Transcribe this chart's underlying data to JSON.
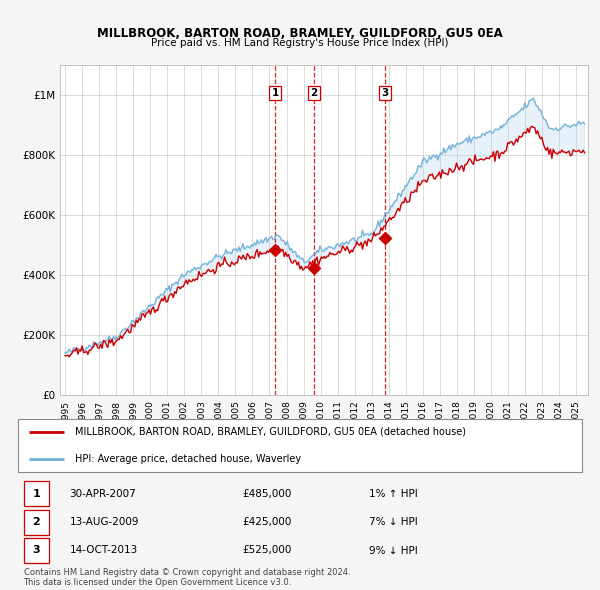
{
  "title": "MILLBROOK, BARTON ROAD, BRAMLEY, GUILDFORD, GU5 0EA",
  "subtitle": "Price paid vs. HM Land Registry's House Price Index (HPI)",
  "ylim": [
    0,
    1100000
  ],
  "yticks": [
    0,
    200000,
    400000,
    600000,
    800000,
    1000000
  ],
  "ytick_labels": [
    "£0",
    "£200K",
    "£400K",
    "£600K",
    "£800K",
    "£1M"
  ],
  "hpi_color": "#6baed6",
  "price_color": "#cc0000",
  "vline_color": "#cc0000",
  "fill_color": "#d6e8f7",
  "background_color": "#f5f5f5",
  "plot_bg_color": "#ffffff",
  "transactions": [
    {
      "label": "1",
      "date_num": 2007.33,
      "price": 485000,
      "pct": "1%",
      "dir": "↑",
      "date_str": "30-APR-2007"
    },
    {
      "label": "2",
      "date_num": 2009.62,
      "price": 425000,
      "pct": "7%",
      "dir": "↓",
      "date_str": "13-AUG-2009"
    },
    {
      "label": "3",
      "date_num": 2013.79,
      "price": 525000,
      "pct": "9%",
      "dir": "↓",
      "date_str": "14-OCT-2013"
    }
  ],
  "legend_line1": "MILLBROOK, BARTON ROAD, BRAMLEY, GUILDFORD, GU5 0EA (detached house)",
  "legend_line2": "HPI: Average price, detached house, Waverley",
  "footnote1": "Contains HM Land Registry data © Crown copyright and database right 2024.",
  "footnote2": "This data is licensed under the Open Government Licence v3.0."
}
